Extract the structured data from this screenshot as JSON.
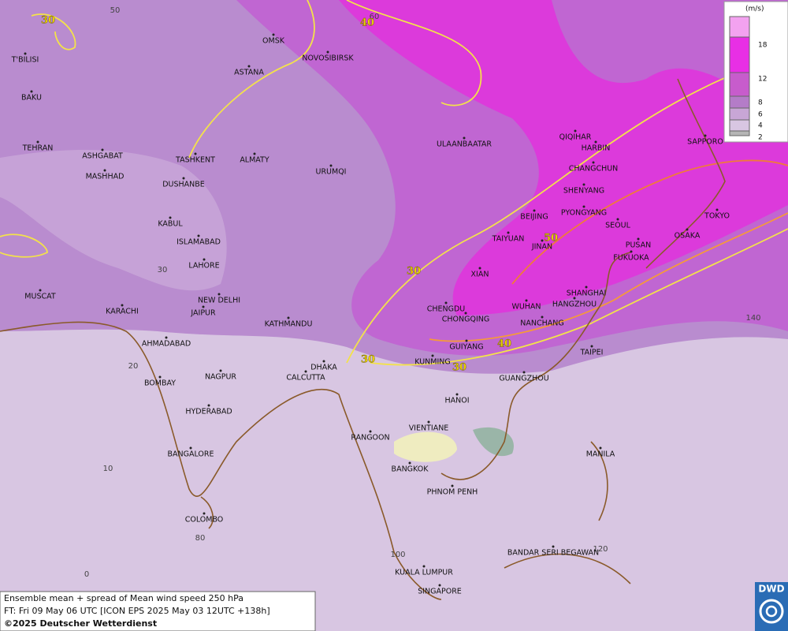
{
  "map": {
    "contour_labels": [
      "30",
      "40",
      "50",
      "30",
      "40",
      "30",
      "30"
    ],
    "grid_labels": [
      "50",
      "60",
      "30",
      "20",
      "10",
      "0",
      "140",
      "80",
      "100",
      "120"
    ],
    "cities": [
      "OMSK",
      "NOVOSIBIRSK",
      "ASTANA",
      "T'BILISI",
      "BAKU",
      "TEHRAN",
      "ASHGABAT",
      "MASHHAD",
      "TASHKENT",
      "ALMATY",
      "DUSHANBE",
      "URUMQI",
      "ULAANBAATAR",
      "QIQIHAR",
      "HARBIN",
      "CHANGCHUN",
      "SHENYANG",
      "BEIJING",
      "PYONGYANG",
      "SEOUL",
      "TAIYUAN",
      "JINAN",
      "PUSAN",
      "FUKUOKA",
      "SAPPORO",
      "TOKYO",
      "OSAKA",
      "KABUL",
      "ISLAMABAD",
      "LAHORE",
      "NEW DELHI",
      "JAIPUR",
      "XIAN",
      "SHANGHAI",
      "HANGZHOU",
      "WUHAN",
      "NANCHANG",
      "CHENGDU",
      "CHONGQING",
      "MUSCAT",
      "KARACHI",
      "KATHMANDU",
      "AHMADABAD",
      "GUIYANG",
      "TAIPEI",
      "KUNMING",
      "DHAKA",
      "CALCUTTA",
      "NAGPUR",
      "BOMBAY",
      "GUANGZHOU",
      "HANOI",
      "HYDERABAD",
      "RANGOON",
      "VIENTIANE",
      "BANGALORE",
      "MANILA",
      "BANGKOK",
      "PHNOM PENH",
      "COLOMBO",
      "BANDAR SERI BEGAWAN",
      "KUALA LUMPUR",
      "SINGAPORE"
    ]
  },
  "legend": {
    "unit": "(m/s)",
    "levels": [
      "18",
      "12",
      "8",
      "6",
      "4",
      "2"
    ]
  },
  "footer": {
    "line1": "Ensemble mean + spread of Mean wind speed 250 hPa",
    "line2": "FT: Fri 09 May 06 UTC [ICON EPS 2025 May 03 12UTC +138h]",
    "line3": "©2025 Deutscher Wetterdienst"
  },
  "logo": "DWD"
}
